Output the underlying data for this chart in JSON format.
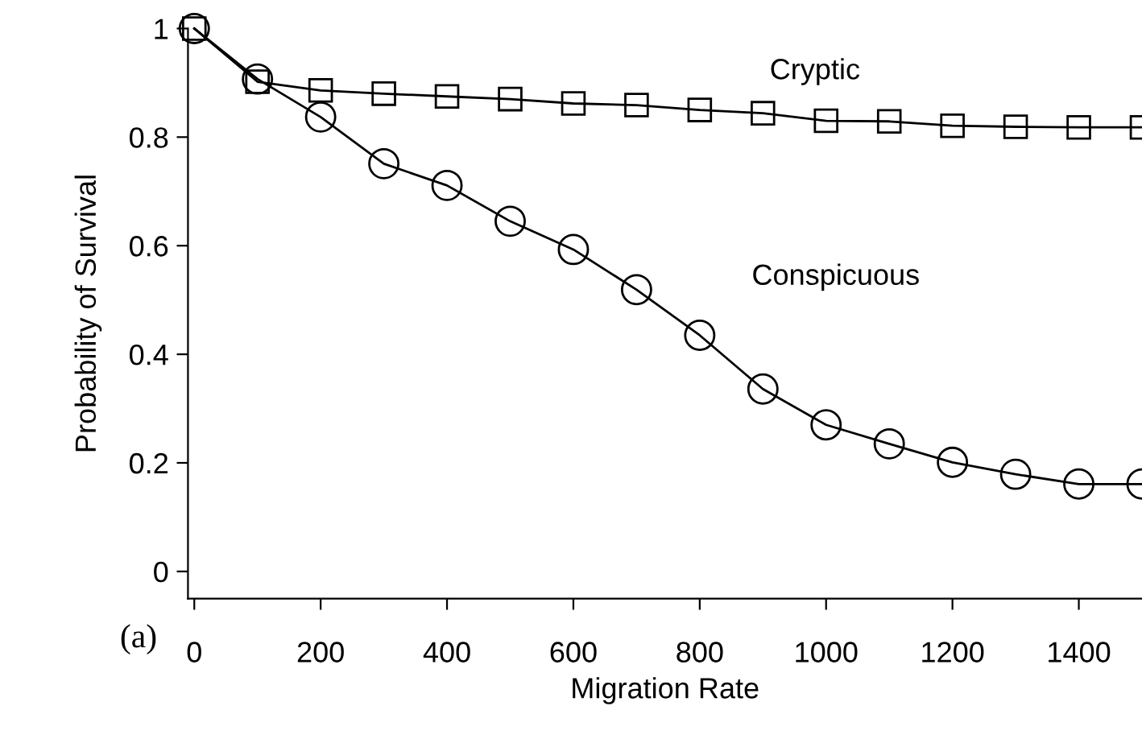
{
  "chart_data": {
    "type": "line",
    "xlabel": "Migration Rate",
    "ylabel": "Probability of Survival",
    "x": [
      0,
      100,
      200,
      300,
      400,
      500,
      600,
      700,
      800,
      900,
      1000,
      1100,
      1200,
      1300,
      1400,
      1500
    ],
    "series": [
      {
        "name": "Cryptic",
        "color": "#000000",
        "marker": "square",
        "values": [
          1.0,
          0.902,
          0.886,
          0.88,
          0.875,
          0.87,
          0.862,
          0.859,
          0.85,
          0.844,
          0.83,
          0.829,
          0.821,
          0.819,
          0.818,
          0.818
        ]
      },
      {
        "name": "Conspicuous",
        "color": "#000000",
        "marker": "circle",
        "values": [
          1.0,
          0.907,
          0.837,
          0.751,
          0.711,
          0.645,
          0.593,
          0.519,
          0.435,
          0.336,
          0.27,
          0.235,
          0.201,
          0.179,
          0.161,
          0.161
        ]
      }
    ],
    "xlim": [
      -10,
      1500
    ],
    "ylim": [
      -0.05,
      1
    ],
    "xticks": [
      0,
      200,
      400,
      600,
      800,
      1000,
      1200,
      1400
    ],
    "yticks": [
      0,
      0.2,
      0.4,
      0.6,
      0.8,
      1
    ],
    "annotations": [
      "(a)"
    ],
    "grid": false,
    "legend": false,
    "line_style": "solid"
  }
}
